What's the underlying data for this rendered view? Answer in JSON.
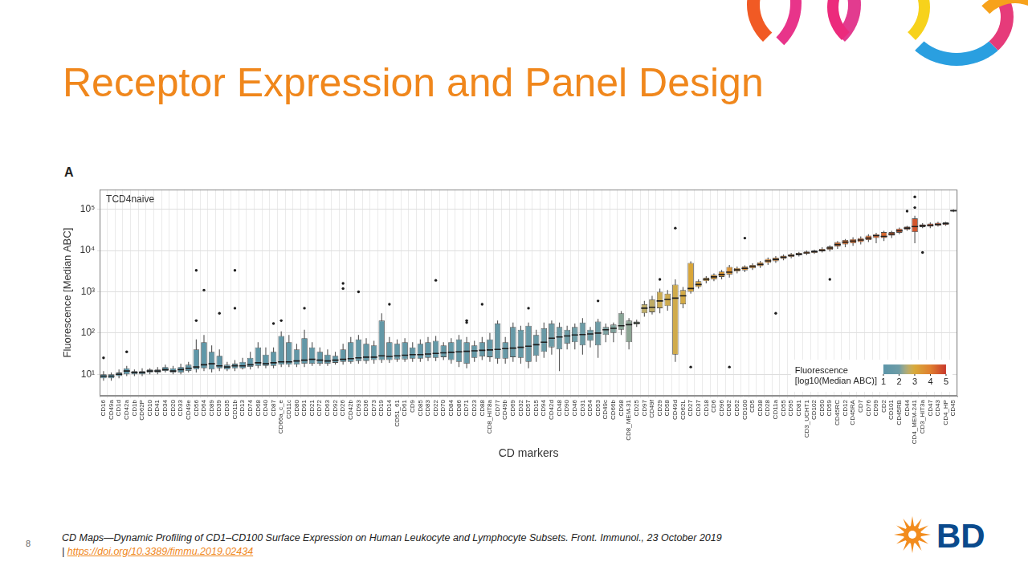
{
  "slide": {
    "title": "Receptor Expression and Panel Design",
    "page_number": "8",
    "footer": {
      "citation": "CD Maps—Dynamic Profiling of CD1–CD100 Surface Expression on Human Leukocyte and Lymphocyte Subsets. Front. Immunol., 23 October 2019",
      "separator": "|",
      "link": "https://doi.org/10.3389/fimmu.2019.02434"
    },
    "logo_text": "BD"
  },
  "chart_data": {
    "type": "boxplot",
    "panel_label": "A",
    "subtitle": "TCD4naive",
    "x_label": "CD markers",
    "y_label": "Fluorescence [Median ABC]",
    "log": "y",
    "grid": true,
    "legend": "bottom right",
    "ylim": [
      3,
      300000
    ],
    "yticks": [
      {
        "value": 10,
        "label": "10¹"
      },
      {
        "value": 100,
        "label": "10²"
      },
      {
        "value": 1000,
        "label": "10³"
      },
      {
        "value": 10000,
        "label": "10⁴"
      },
      {
        "value": 100000,
        "label": "10⁵"
      }
    ],
    "color_bar": {
      "title": "Fluorescence [log10(Median ABC)]",
      "range": [
        1,
        5
      ],
      "ticks": [
        1,
        2,
        3,
        4,
        5
      ]
    },
    "categories": [
      "CD16",
      "CD49a",
      "CD1d",
      "CD42a",
      "CD1b",
      "CD62P",
      "CD10",
      "CD41",
      "CD34",
      "CD20",
      "CD33",
      "CD49e",
      "CD56",
      "CD64",
      "CD89",
      "CD39",
      "CD35",
      "CD11b",
      "CD13",
      "CD74",
      "CD68",
      "CD40",
      "CD87",
      "CD66a_c_e",
      "CD11c",
      "CD80",
      "CD91",
      "CD21",
      "CD72",
      "CD63",
      "CD92",
      "CD26",
      "CD42b",
      "CD93",
      "CD36",
      "CD73",
      "CD19",
      "CD14",
      "CD51_61",
      "CD61",
      "CD9",
      "CD85",
      "CD83",
      "CD22",
      "CD70",
      "CD84",
      "CD86",
      "CD71",
      "CD23",
      "CD88",
      "CD8_HIT8a",
      "CD77",
      "CD49b",
      "CD69",
      "CD32",
      "CD57",
      "CD15",
      "CD94",
      "CD42d",
      "CD48",
      "CD90",
      "CD46",
      "CD31",
      "CD54",
      "CD53",
      "CD49c",
      "CD66b",
      "CD98",
      "CD8_MEM-31",
      "CD25",
      "CD97",
      "CD49f",
      "CD29",
      "CD58",
      "CD49d",
      "CD62L",
      "CD27",
      "CD37",
      "CD18",
      "CD6",
      "CD96",
      "CD82",
      "CD52",
      "CD100",
      "CD5",
      "CD38",
      "CD28",
      "CD11a",
      "CD55",
      "CD95",
      "CD81",
      "CD3_UCHT1",
      "CD102",
      "CD50",
      "CD59",
      "CD45RC",
      "CD12",
      "CD45RA",
      "CD7",
      "CD76",
      "CD99",
      "CD2",
      "CD101",
      "CD45RB",
      "CD44",
      "CD4_MEM-241",
      "CD3_HIT3a",
      "CD47",
      "CD43",
      "CD4_HP",
      "CD45"
    ],
    "whisker_low": [
      7,
      7,
      8,
      9,
      9,
      9,
      10,
      10,
      11,
      10,
      10,
      11,
      11,
      12,
      11,
      12,
      12,
      12,
      13,
      13,
      14,
      14,
      14,
      15,
      15,
      15,
      15,
      16,
      16,
      16,
      17,
      17,
      18,
      18,
      18,
      18,
      19,
      19,
      20,
      20,
      20,
      20,
      21,
      21,
      22,
      18,
      15,
      14,
      20,
      22,
      20,
      18,
      18,
      20,
      18,
      14,
      20,
      25,
      30,
      12,
      40,
      40,
      30,
      45,
      25,
      60,
      60,
      90,
      40,
      140,
      250,
      280,
      300,
      350,
      20,
      400,
      900,
      1200,
      1600,
      1800,
      2000,
      2200,
      2800,
      3000,
      3400,
      3800,
      4500,
      5000,
      5800,
      6500,
      7200,
      7800,
      8300,
      9000,
      9500,
      11000,
      12000,
      13000,
      14000,
      16000,
      15000,
      17000,
      20000,
      25000,
      30000,
      15000,
      35000,
      35000,
      38000,
      40000,
      85000
    ],
    "q1": [
      8,
      8,
      9,
      10,
      10,
      10,
      11,
      11,
      12,
      11,
      11,
      12,
      13,
      14,
      13,
      14,
      13,
      14,
      14,
      15,
      16,
      16,
      16,
      17,
      17,
      17,
      18,
      18,
      18,
      18,
      19,
      20,
      20,
      21,
      21,
      22,
      22,
      22,
      23,
      23,
      24,
      24,
      25,
      25,
      26,
      22,
      20,
      18,
      25,
      27,
      26,
      24,
      24,
      26,
      25,
      20,
      28,
      35,
      45,
      40,
      55,
      60,
      50,
      65,
      50,
      90,
      100,
      120,
      60,
      160,
      300,
      320,
      400,
      450,
      30,
      500,
      1000,
      1300,
      1800,
      2000,
      2300,
      2600,
      3100,
      3300,
      3700,
      4200,
      5000,
      5500,
      6300,
      7000,
      7700,
      8300,
      8800,
      9500,
      10500,
      12500,
      14000,
      15000,
      16000,
      18000,
      20000,
      20000,
      23000,
      27000,
      32000,
      28000,
      37000,
      38000,
      40000,
      42000,
      88000
    ],
    "median": [
      9,
      9,
      10,
      12,
      11,
      11,
      12,
      12,
      13,
      12,
      13,
      14,
      15,
      17,
      18,
      16,
      15,
      16,
      16,
      17,
      19,
      18,
      19,
      20,
      20,
      21,
      22,
      23,
      22,
      21,
      22,
      23,
      24,
      25,
      26,
      26,
      28,
      27,
      28,
      29,
      30,
      30,
      31,
      32,
      33,
      34,
      35,
      36,
      37,
      38,
      39,
      40,
      42,
      43,
      45,
      48,
      52,
      60,
      75,
      80,
      85,
      90,
      92,
      95,
      100,
      120,
      130,
      150,
      160,
      175,
      400,
      420,
      600,
      650,
      700,
      800,
      1200,
      1500,
      2000,
      2300,
      2600,
      3000,
      3400,
      3700,
      4100,
      4600,
      5600,
      6100,
      6900,
      7600,
      8200,
      8800,
      9400,
      10000,
      11500,
      14000,
      16000,
      17000,
      18000,
      20000,
      23000,
      22000,
      25000,
      30000,
      35000,
      38000,
      40000,
      41000,
      43000,
      45000,
      92000
    ],
    "q3": [
      10,
      10,
      11,
      14,
      12,
      12,
      13,
      13,
      15,
      14,
      15,
      17,
      40,
      60,
      35,
      28,
      17,
      18,
      20,
      25,
      45,
      30,
      35,
      85,
      60,
      40,
      75,
      45,
      35,
      30,
      28,
      40,
      60,
      70,
      55,
      50,
      200,
      60,
      55,
      60,
      45,
      55,
      60,
      65,
      50,
      60,
      70,
      60,
      50,
      60,
      70,
      170,
      60,
      140,
      120,
      150,
      90,
      130,
      170,
      140,
      120,
      140,
      180,
      120,
      190,
      140,
      160,
      300,
      200,
      190,
      500,
      650,
      1000,
      900,
      1500,
      1100,
      5000,
      1800,
      2200,
      2600,
      3100,
      4000,
      3800,
      4100,
      4500,
      5200,
      6300,
      6800,
      7500,
      8200,
      8800,
      9500,
      10000,
      11000,
      12500,
      16000,
      18000,
      19000,
      20000,
      23000,
      25000,
      28000,
      28000,
      34000,
      38000,
      60000,
      43000,
      45000,
      47000,
      48000,
      96000
    ],
    "whisker_high": [
      12,
      11,
      13,
      16,
      13,
      14,
      14,
      15,
      17,
      16,
      18,
      20,
      70,
      90,
      50,
      40,
      20,
      22,
      25,
      35,
      60,
      45,
      45,
      110,
      90,
      55,
      120,
      60,
      45,
      40,
      35,
      55,
      80,
      90,
      75,
      65,
      300,
      80,
      70,
      75,
      60,
      70,
      80,
      85,
      60,
      75,
      90,
      80,
      65,
      80,
      100,
      200,
      80,
      180,
      150,
      180,
      120,
      180,
      200,
      180,
      150,
      170,
      230,
      140,
      220,
      170,
      180,
      340,
      230,
      210,
      600,
      800,
      1200,
      1100,
      2000,
      1300,
      5500,
      2000,
      2400,
      2800,
      3400,
      4500,
      4100,
      4400,
      4900,
      5600,
      6800,
      7300,
      8000,
      8800,
      9300,
      10000,
      10500,
      12000,
      13500,
      17000,
      19000,
      21000,
      22000,
      25000,
      27000,
      30000,
      30000,
      36000,
      40000,
      70000,
      46000,
      48000,
      50000,
      50000,
      100000
    ],
    "outliers": [
      {
        "category": "CD16",
        "values": [
          25
        ]
      },
      {
        "category": "CD42a",
        "values": [
          35
        ]
      },
      {
        "category": "CD56",
        "values": [
          200,
          3300
        ]
      },
      {
        "category": "CD64",
        "values": [
          1100
        ]
      },
      {
        "category": "CD39",
        "values": [
          300
        ]
      },
      {
        "category": "CD11b",
        "values": [
          3300,
          400
        ]
      },
      {
        "category": "CD87",
        "values": [
          170
        ]
      },
      {
        "category": "CD66a_c_e",
        "values": [
          200
        ]
      },
      {
        "category": "CD91",
        "values": [
          400
        ]
      },
      {
        "category": "CD26",
        "values": [
          1600,
          1200
        ]
      },
      {
        "category": "CD93",
        "values": [
          1000
        ]
      },
      {
        "category": "CD14",
        "values": [
          500
        ]
      },
      {
        "category": "CD22",
        "values": [
          1900
        ]
      },
      {
        "category": "CD71",
        "values": [
          180,
          200
        ]
      },
      {
        "category": "CD88",
        "values": [
          500
        ]
      },
      {
        "category": "CD57",
        "values": [
          400
        ]
      },
      {
        "category": "CD53",
        "values": [
          600
        ]
      },
      {
        "category": "CD49d",
        "values": [
          35000
        ]
      },
      {
        "category": "CD29",
        "values": [
          2000
        ]
      },
      {
        "category": "CD27",
        "values": [
          15
        ]
      },
      {
        "category": "CD82",
        "values": [
          15
        ]
      },
      {
        "category": "CD11a",
        "values": [
          300
        ]
      },
      {
        "category": "CD100",
        "values": [
          20000
        ]
      },
      {
        "category": "CD59",
        "values": [
          2000
        ]
      },
      {
        "category": "CD44",
        "values": [
          90000
        ]
      },
      {
        "category": "CD4_MEM-241",
        "values": [
          200000,
          110000
        ]
      },
      {
        "category": "CD3_HIT3a",
        "values": [
          9000
        ]
      }
    ]
  }
}
